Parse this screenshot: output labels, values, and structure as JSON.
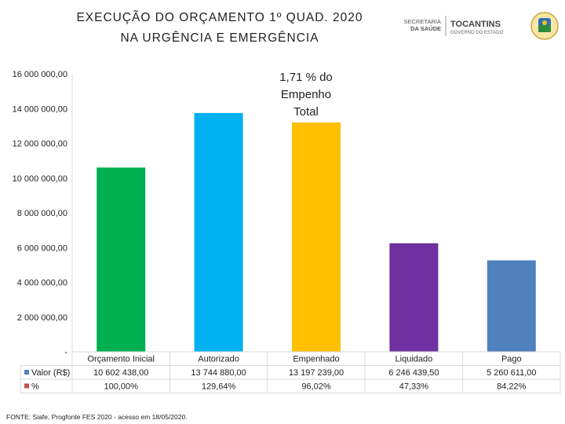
{
  "header": {
    "title_line1": "EXECUÇÃO DO ORÇAMENTO 1º QUAD. 2020",
    "title_line2": "NA URGÊNCIA E EMERGÊNCIA",
    "logo_secretaria_line1": "SECRETARIA",
    "logo_secretaria_line2": "DA SAÚDE",
    "logo_tocantins": "TOCANTINS",
    "logo_governo": "GOVERNO DO ESTADO"
  },
  "annotation": "1,71 % do Empenho Total",
  "source": "FONTE: Siafe, Progfonte FES 2020 - acesso em 18/05/2020.",
  "colors": {
    "bars": [
      "#00b050",
      "#00b0f0",
      "#ffc000",
      "#7030a0",
      "#4f81bd"
    ],
    "legend_valor": "#4f81bd",
    "legend_pct": "#c0504d"
  },
  "chart_data": {
    "type": "bar",
    "categories": [
      "Orçamento Inicial",
      "Autorizado",
      "Empenhado",
      "Liquidado",
      "Pago"
    ],
    "series": [
      {
        "name": "Valor (R$)",
        "values": [
          10602438.0,
          13744880.0,
          13197239.0,
          6246439.5,
          5260611.0
        ]
      },
      {
        "name": "%",
        "values": [
          100.0,
          129.64,
          96.02,
          47.33,
          84.22
        ]
      }
    ],
    "y_tick_labels": [
      "-",
      "2 000 000,00",
      "4 000 000,00",
      "6 000 000,00",
      "8 000 000,00",
      "10 000 000,00",
      "12 000 000,00",
      "14 000 000,00",
      "16 000 000,00"
    ],
    "ylim": [
      0,
      16000000
    ],
    "table": {
      "valor_labels": [
        "10 602 438,00",
        "13 744 880,00",
        "13 197 239,00",
        "6 246 439,50",
        "5 260 611,00"
      ],
      "pct_labels": [
        "100,00%",
        "129,64%",
        "96,02%",
        "47,33%",
        "84,22%"
      ]
    },
    "title": "EXECUÇÃO DO ORÇAMENTO 1º QUAD. 2020 NA URGÊNCIA E EMERGÊNCIA",
    "xlabel": "",
    "ylabel": "",
    "grid": false
  }
}
